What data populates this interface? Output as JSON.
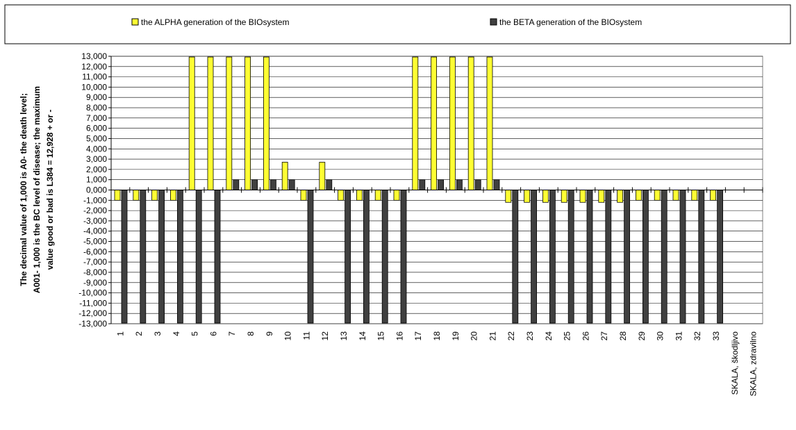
{
  "chart_data": {
    "type": "bar",
    "ylabel": [
      "The decimal value of 1,000 is A0- the death level;",
      "A001- 1,000 is the BC level  of disease; the maximum",
      "value good or bad is L384 =  12,928 + or -"
    ],
    "ylim": [
      -13000,
      13000
    ],
    "yticks": [
      -13000,
      -12000,
      -11000,
      -10000,
      -9000,
      -8000,
      -7000,
      -6000,
      -5000,
      -4000,
      -3000,
      -2000,
      -1000,
      0,
      1000,
      2000,
      3000,
      4000,
      5000,
      6000,
      7000,
      8000,
      9000,
      10000,
      11000,
      12000,
      13000
    ],
    "ytick_labels": [
      "-13,000",
      "-12,000",
      "-11,000",
      "-10,000",
      "-9,000",
      "-8,000",
      "-7,000",
      "-6,000",
      "-5,000",
      "-4,000",
      "-3,000",
      "-2,000",
      "-1,000",
      "0,000",
      "1,000",
      "2,000",
      "3,000",
      "4,000",
      "5,000",
      "6,000",
      "7,000",
      "8,000",
      "9,000",
      "10,000",
      "11,000",
      "12,000",
      "13,000"
    ],
    "grid": true,
    "legend_position": "top",
    "categories": [
      "1",
      "2",
      "3",
      "4",
      "5",
      "6",
      "7",
      "8",
      "9",
      "10",
      "11",
      "12",
      "13",
      "14",
      "15",
      "16",
      "17",
      "18",
      "19",
      "20",
      "21",
      "22",
      "23",
      "24",
      "25",
      "26",
      "27",
      "28",
      "29",
      "30",
      "31",
      "32",
      "33",
      "SKALA, škodljivo",
      "SKALA, zdravilno"
    ],
    "series": [
      {
        "name": "the ALPHA generation of the BIOsystem",
        "color": "#ffff33",
        "values": [
          -1000,
          -1000,
          -1000,
          -1000,
          12928,
          12928,
          12928,
          12928,
          12928,
          2700,
          -1000,
          2700,
          -1000,
          -1000,
          -1000,
          -1000,
          12928,
          12928,
          12928,
          12928,
          12928,
          -1200,
          -1200,
          -1200,
          -1200,
          -1200,
          -1200,
          -1200,
          -1000,
          -1000,
          -1000,
          -1000,
          -1000,
          null,
          null
        ]
      },
      {
        "name": "the BETA generation of the BIOsystem",
        "color": "#404040",
        "values": [
          -12928,
          -12928,
          -12928,
          -12928,
          -12928,
          -12928,
          1000,
          1000,
          1000,
          1000,
          -12928,
          1000,
          -12928,
          -12928,
          -12928,
          -12928,
          1000,
          1000,
          1000,
          1000,
          1000,
          -12928,
          -12928,
          -12928,
          -12928,
          -12928,
          -12928,
          -12928,
          -12928,
          -12928,
          -12928,
          -12928,
          -12928,
          null,
          null
        ]
      }
    ]
  }
}
